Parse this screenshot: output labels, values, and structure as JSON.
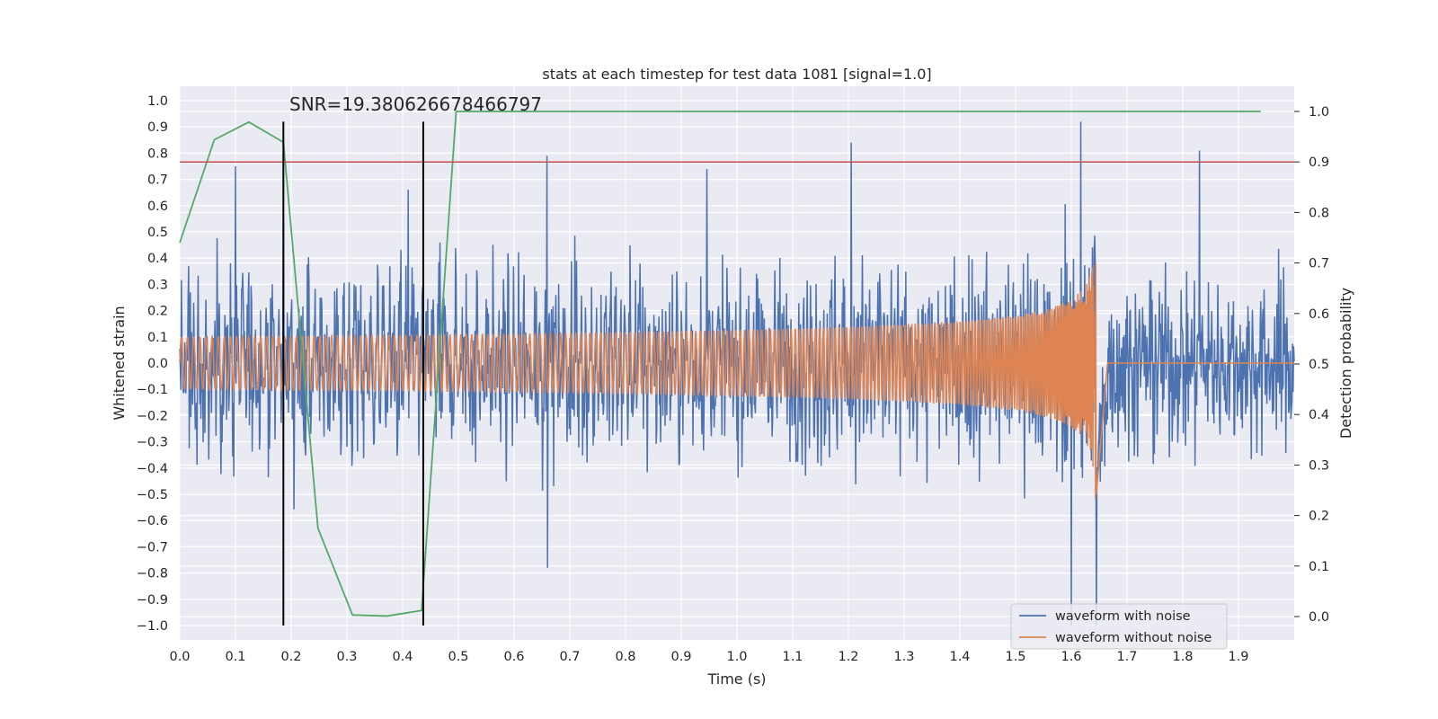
{
  "chart_data": {
    "type": "line",
    "title": "stats at each timestep for test data 1081 [signal=1.0]",
    "annotation": "SNR=19.380626678466797",
    "xlabel": "Time (s)",
    "ylabel": "Whitened strain",
    "y2label": "Detection probability",
    "xlim": [
      0.0,
      2.0
    ],
    "ylim": [
      -1.09,
      1.1
    ],
    "y2lim": [
      -0.05,
      1.05
    ],
    "x_ticks": [
      "0.0",
      "0.1",
      "0.2",
      "0.3",
      "0.4",
      "0.5",
      "0.6",
      "0.7",
      "0.8",
      "0.9",
      "1.0",
      "1.1",
      "1.2",
      "1.3",
      "1.4",
      "1.5",
      "1.6",
      "1.7",
      "1.8",
      "1.9"
    ],
    "y_ticks": [
      "1.0",
      "0.9",
      "0.8",
      "0.7",
      "0.6",
      "0.5",
      "0.4",
      "0.3",
      "0.2",
      "0.1",
      "0.0",
      "−0.1",
      "−0.2",
      "−0.3",
      "−0.4",
      "−0.5",
      "−0.6",
      "−0.7",
      "−0.8",
      "−0.9",
      "−1.0"
    ],
    "y2_ticks": [
      "1.0",
      "0.9",
      "0.8",
      "0.7",
      "0.6",
      "0.5",
      "0.4",
      "0.3",
      "0.2",
      "0.1",
      "0.0"
    ],
    "grid": true,
    "legend_position": "lower-right",
    "series": [
      {
        "name": "waveform with noise",
        "color": "#4c72b0",
        "axis": "left",
        "description_values": "dense noisy strain, approx. range -1.0 to 0.92"
      },
      {
        "name": "waveform without noise",
        "color": "#dd8452",
        "axis": "left",
        "description_values": "chirp oscillation, amplitude ~0.1 growing to ~0.62 near t=1.645 s, then flat 0.0"
      }
    ],
    "noise_peaks": [
      {
        "x": 0.019,
        "y": 0.27
      },
      {
        "x": 0.1,
        "y": 0.75
      },
      {
        "x": 0.186,
        "y": 0.55
      },
      {
        "x": 0.41,
        "y": 0.66
      },
      {
        "x": 0.659,
        "y": 0.79
      },
      {
        "x": 0.946,
        "y": 0.74
      },
      {
        "x": 1.205,
        "y": 0.84
      },
      {
        "x": 1.617,
        "y": 0.92
      },
      {
        "x": 1.83,
        "y": 0.81
      },
      {
        "x": 1.6,
        "y": -1.0
      },
      {
        "x": 1.645,
        "y": -1.0
      },
      {
        "x": 0.66,
        "y": -0.78
      }
    ],
    "probability_series": {
      "color": "#55a868",
      "axis": "right",
      "x": [
        0.0,
        0.062,
        0.124,
        0.186,
        0.248,
        0.31,
        0.372,
        0.434,
        0.496,
        1.94
      ],
      "y": [
        0.74,
        0.944,
        0.979,
        0.939,
        0.175,
        0.003,
        0.001,
        0.012,
        1.0,
        1.0
      ]
    },
    "threshold_line": {
      "axis": "right",
      "y": 0.9,
      "color": "#c44e52"
    },
    "vertical_markers": {
      "color": "#000000",
      "x": [
        0.186,
        0.437
      ],
      "y_from": -1.0,
      "y_to": 0.92
    },
    "chirp": {
      "end_time": 1.645,
      "base_amplitude": 0.1,
      "peak_amplitude": 0.62
    }
  },
  "legend": {
    "noise_label": "waveform with noise",
    "clean_label": "waveform without noise"
  }
}
